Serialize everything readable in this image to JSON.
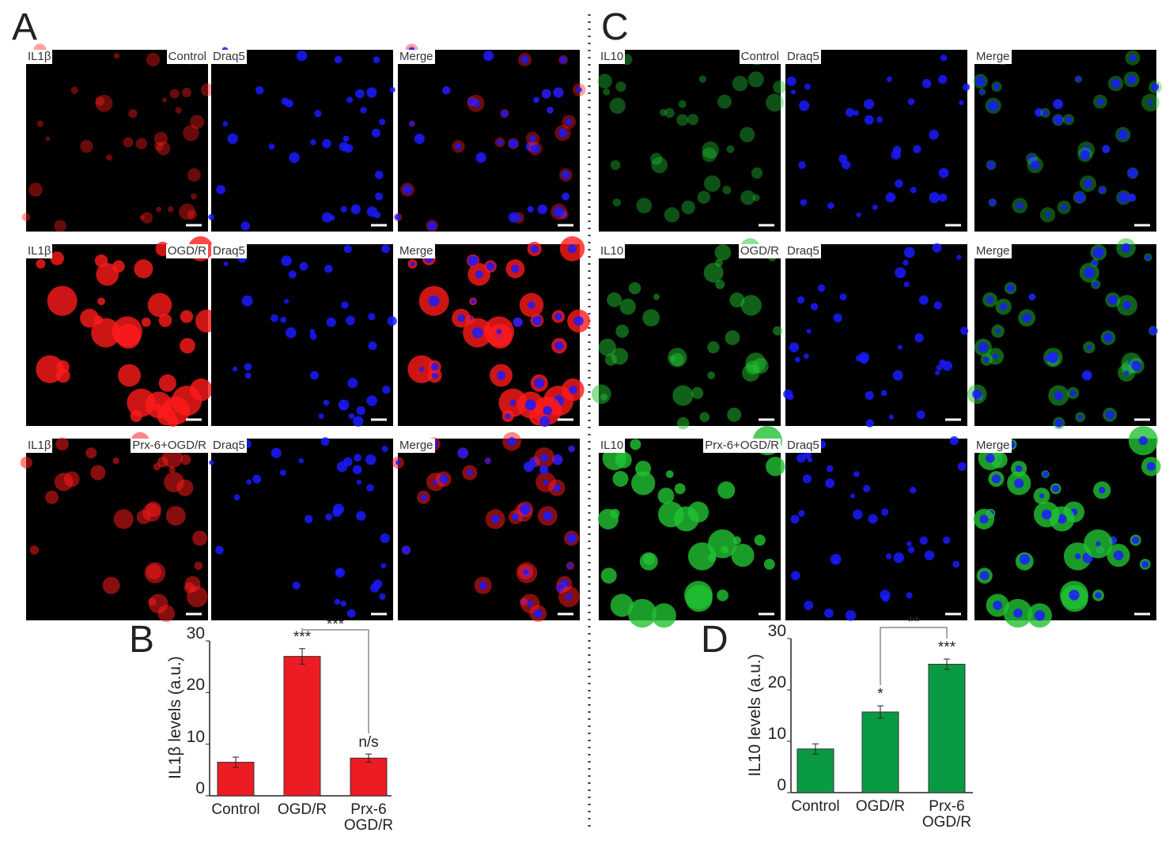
{
  "panels": [
    {
      "letter": "A",
      "stain_color": "#ff1a1a",
      "rows": [
        {
          "stain": "IL1β",
          "condition": "Control",
          "nuclear": "Draq5",
          "merge": "Merge"
        },
        {
          "stain": "IL1β",
          "condition": "OGD/R",
          "nuclear": "Draq5",
          "merge": "Merge"
        },
        {
          "stain": "IL1β",
          "condition": "Prx-6+OGD/R",
          "nuclear": "Draq5",
          "merge": "Merge"
        }
      ]
    },
    {
      "letter": "C",
      "stain_color": "#22c232",
      "rows": [
        {
          "stain": "IL10",
          "condition": "Control",
          "nuclear": "Draq5",
          "merge": "Merge"
        },
        {
          "stain": "IL10",
          "condition": "OGD/R",
          "nuclear": "Draq5",
          "merge": "Merge"
        },
        {
          "stain": "IL10",
          "condition": "Prx-6+OGD/R",
          "nuclear": "Draq5",
          "merge": "Merge"
        }
      ]
    }
  ],
  "chart_data": [
    {
      "type": "bar",
      "letter": "B",
      "y_label": "IL1β levels (a.u.)",
      "categories": [
        "Control",
        "OGD/R",
        "Prx-6\nOGD/R"
      ],
      "values": [
        6.5,
        27,
        7.3
      ],
      "errors": [
        1,
        1.5,
        0.8
      ],
      "significance": [
        null,
        "***",
        "n/s"
      ],
      "bracket_label": "***",
      "color": "#ed1c24",
      "ylim": [
        0,
        30
      ],
      "yticks": [
        0,
        10,
        20,
        30
      ]
    },
    {
      "type": "bar",
      "letter": "D",
      "y_label": "IL10 levels (a.u.)",
      "categories": [
        "Control",
        "OGD/R",
        "Prx-6\nOGD/R"
      ],
      "values": [
        8.5,
        15.7,
        25
      ],
      "errors": [
        1,
        1.2,
        1
      ],
      "significance": [
        null,
        "*",
        "***"
      ],
      "bracket_label": "**",
      "color": "#0a9a44",
      "ylim": [
        0,
        30
      ],
      "yticks": [
        0,
        10,
        20,
        30
      ]
    }
  ]
}
